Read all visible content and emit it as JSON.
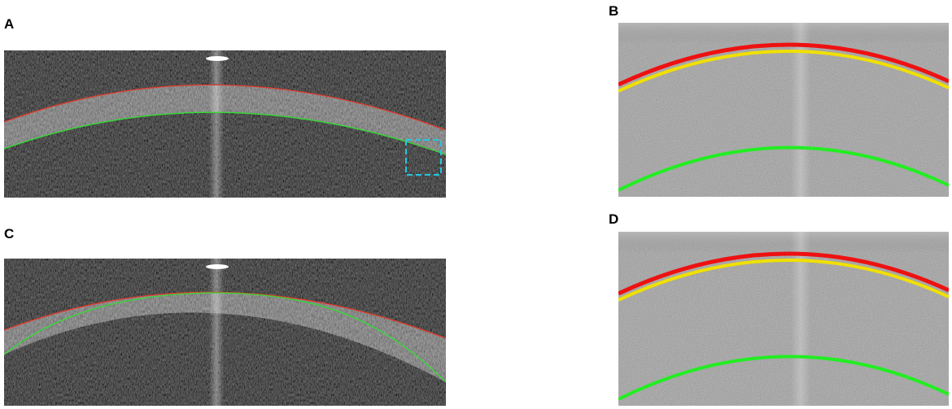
{
  "figure": {
    "panels": [
      {
        "label": "A",
        "style": "dark",
        "curves": [
          "#e03a2a",
          "#33dd33"
        ],
        "roi_box": true
      },
      {
        "label": "B",
        "style": "gray",
        "curves": [
          "#ee1111",
          "#f0e000",
          "#22ee22"
        ],
        "roi_box": false
      },
      {
        "label": "C",
        "style": "dark",
        "curves": [
          "#e03a2a",
          "#33dd33"
        ],
        "roi_box": false
      },
      {
        "label": "D",
        "style": "gray",
        "curves": [
          "#ee1111",
          "#f0e000",
          "#22ee22"
        ],
        "roi_box": false
      }
    ],
    "colors": {
      "red": "#e03a2a",
      "green": "#33dd33",
      "yellow": "#f0e000",
      "roi_box": "#22c8e0",
      "dark_bg": "#0b0b0b",
      "gray_bg": "#7a7a7a"
    }
  }
}
